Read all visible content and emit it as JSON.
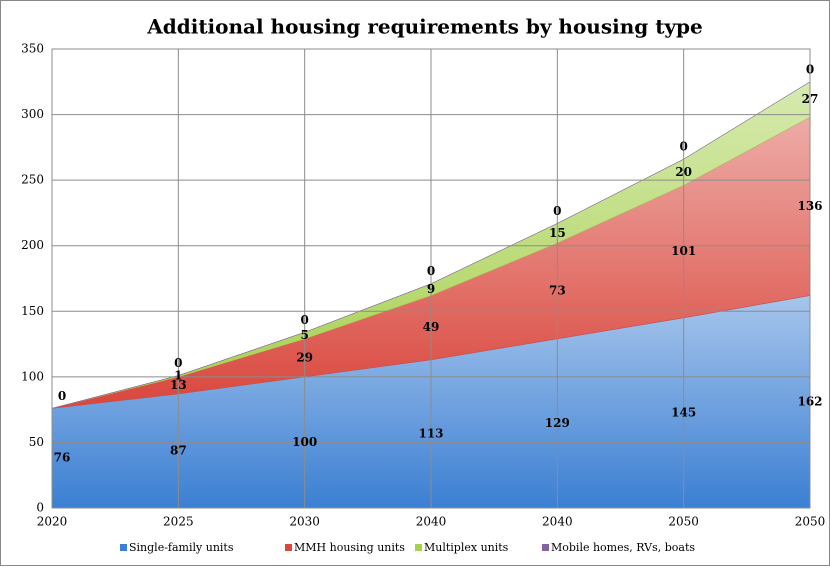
{
  "chart_data": {
    "type": "stacked_area",
    "title": "Additional housing requirements by housing type",
    "categories": [
      "2020",
      "2025",
      "2030",
      "2040",
      "2040",
      "2050",
      "2050"
    ],
    "series": [
      {
        "name": "Single-family units",
        "color": "#3b7fd3",
        "values": [
          76,
          87,
          100,
          113,
          129,
          145,
          162
        ],
        "value_labels": [
          "76",
          "87",
          "100",
          "113",
          "129",
          "145",
          "162"
        ]
      },
      {
        "name": "MMH housing units",
        "color": "#d9463c",
        "values": [
          0,
          13,
          29,
          49,
          73,
          101,
          136
        ],
        "value_labels": [
          null,
          "13",
          "29",
          "49",
          "73",
          "101",
          "136"
        ]
      },
      {
        "name": "Multiplex units",
        "color": "#a6d04e",
        "values": [
          0,
          1,
          5,
          9,
          15,
          20,
          27
        ],
        "value_labels": [
          null,
          "1",
          "5",
          "9",
          "15",
          "20",
          "27"
        ]
      },
      {
        "name": "Mobile homes, RVs, boats",
        "color": "#8064a2",
        "values": [
          0,
          0,
          0,
          0,
          0,
          0,
          0
        ],
        "value_labels": [
          "0",
          "0",
          "0",
          "0",
          "0",
          "0",
          "0"
        ]
      }
    ],
    "ylim": [
      0,
      350
    ],
    "yticks": [
      0,
      50,
      100,
      150,
      200,
      250,
      300,
      350
    ],
    "grid": true,
    "legend": "bottom"
  }
}
